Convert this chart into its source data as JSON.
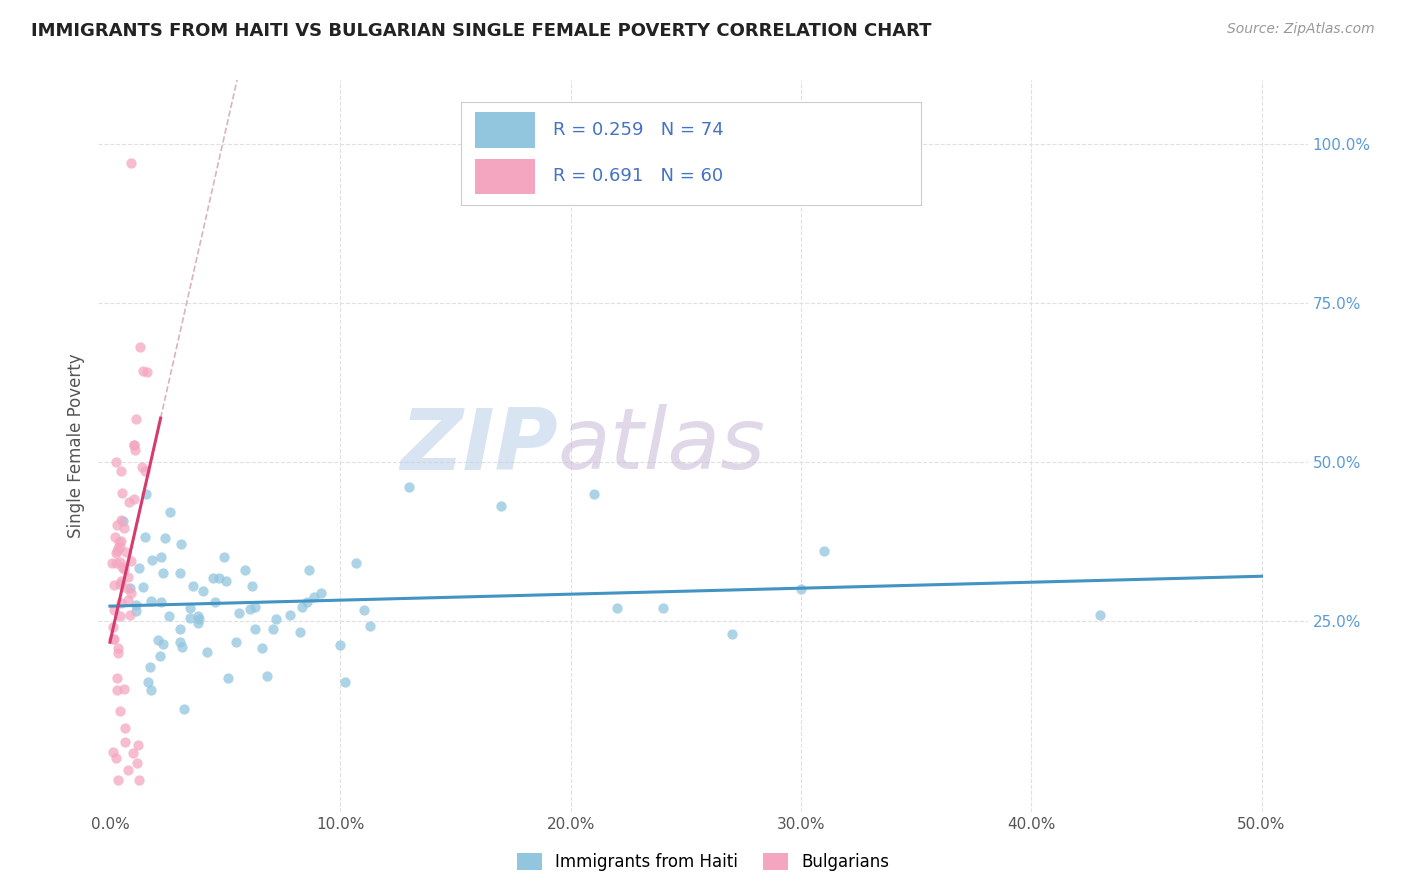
{
  "title": "IMMIGRANTS FROM HAITI VS BULGARIAN SINGLE FEMALE POVERTY CORRELATION CHART",
  "source": "Source: ZipAtlas.com",
  "ylabel": "Single Female Poverty",
  "x_tick_labels": [
    "0.0%",
    "10.0%",
    "20.0%",
    "30.0%",
    "40.0%",
    "50.0%"
  ],
  "x_tick_values": [
    0.0,
    0.1,
    0.2,
    0.3,
    0.4,
    0.5
  ],
  "y_tick_labels_right": [
    "100.0%",
    "75.0%",
    "50.0%",
    "25.0%"
  ],
  "y_tick_values": [
    1.0,
    0.75,
    0.5,
    0.25
  ],
  "xlim": [
    -0.005,
    0.52
  ],
  "ylim": [
    -0.05,
    1.1
  ],
  "haiti_color": "#92c5de",
  "bulgarian_color": "#f4a6c0",
  "haiti_line_color": "#4393c3",
  "bulgarian_line_color": "#d63b6e",
  "bulgarian_dash_color": "#d0a0b0",
  "background_color": "#ffffff",
  "scatter_dot_size": 55,
  "scatter_alpha": 0.75,
  "watermark_zip_color": "#c8d8ec",
  "watermark_atlas_color": "#d0c0d8",
  "grid_color": "#e0e0e0",
  "title_color": "#222222",
  "axis_label_color": "#555555",
  "right_tick_color": "#5b9bd5",
  "source_color": "#999999",
  "legend_R_N_color": "#4472c4"
}
